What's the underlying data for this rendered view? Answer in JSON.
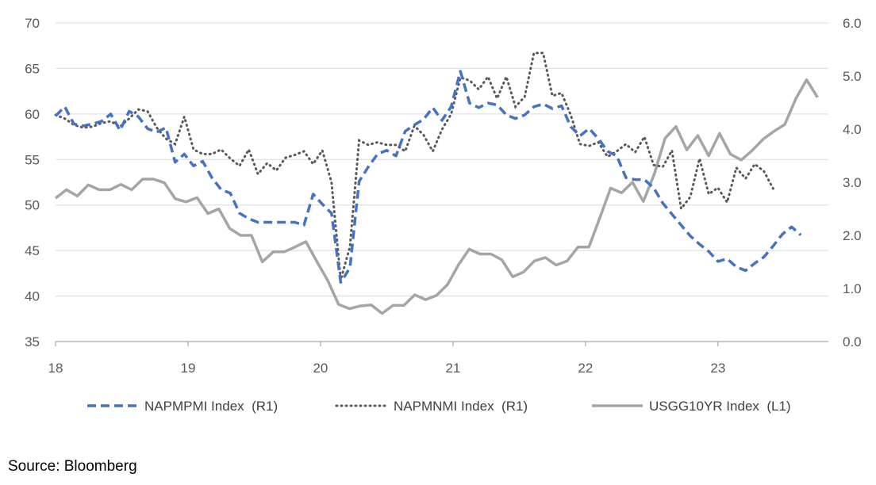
{
  "chart_data": {
    "type": "line",
    "title": "",
    "source": "Source: Bloomberg",
    "x_tick_labels": [
      "18",
      "19",
      "20",
      "21",
      "22",
      "23"
    ],
    "x_domain_months": [
      0,
      70
    ],
    "left_axis": {
      "ticks": [
        "70",
        "65",
        "60",
        "55",
        "50",
        "45",
        "40",
        "35"
      ],
      "range": [
        35,
        70
      ]
    },
    "right_axis": {
      "ticks": [
        "6.0",
        "5.0",
        "4.0",
        "3.0",
        "2.0",
        "1.0",
        "0.0"
      ],
      "range": [
        0,
        6
      ]
    },
    "colors": {
      "napmpmi": "#4472C4",
      "napmnmi": "#595959",
      "usgg10yr": "#A5A5A5",
      "grid": "#D9D9D9",
      "axis": "#A6A6A6"
    },
    "series": [
      {
        "key": "napmpmi",
        "name": "NAPMPMI Index  (R1)",
        "style": "dashed",
        "scale": "left",
        "values": [
          59.8,
          60.8,
          58.9,
          58.7,
          58.9,
          59.2,
          60.0,
          58.2,
          60.3,
          59.7,
          58.4,
          58.0,
          58.5,
          54.7,
          55.6,
          54.3,
          54.8,
          53.0,
          51.7,
          51.3,
          49.1,
          48.5,
          48.1,
          48.1,
          48.1,
          48.1,
          48.1,
          47.8,
          51.2,
          50.1,
          49.1,
          41.5,
          43.1,
          52.6,
          54.2,
          55.6,
          56.0,
          55.4,
          58.1,
          58.8,
          59.4,
          60.7,
          59.3,
          60.8,
          64.7,
          61.2,
          60.7,
          61.2,
          61.0,
          59.9,
          59.5,
          59.9,
          60.8,
          61.1,
          60.6,
          60.9,
          58.6,
          57.6,
          58.4,
          57.3,
          55.9,
          55.4,
          53.0,
          52.8,
          52.8,
          51.9,
          50.2,
          49.0,
          47.8,
          46.6,
          45.7,
          44.9,
          43.8,
          44.1,
          43.2,
          42.8,
          43.6,
          44.3,
          45.5,
          46.8,
          47.6,
          46.7
        ],
        "x_start": 0,
        "x_step": 0.8333
      },
      {
        "key": "napmnmi",
        "name": "NAPMNMI Index  (R1)",
        "style": "dotted",
        "scale": "left",
        "values": [
          59.9,
          59.5,
          58.8,
          58.5,
          58.6,
          59.0,
          59.2,
          58.6,
          59.5,
          60.5,
          60.3,
          58.5,
          57.3,
          56.7,
          59.7,
          56.1,
          55.6,
          55.6,
          56.1,
          55.1,
          54.3,
          56.1,
          53.4,
          54.6,
          53.8,
          55.2,
          55.5,
          55.9,
          54.5,
          56.0,
          52.5,
          41.8,
          45.4,
          57.1,
          56.6,
          56.9,
          56.6,
          56.6,
          55.9,
          58.7,
          57.7,
          55.9,
          58.3,
          60.0,
          64.0,
          63.7,
          62.7,
          64.1,
          61.7,
          64.1,
          60.8,
          61.9,
          66.7,
          66.7,
          62.0,
          62.3,
          59.9,
          56.7,
          56.5,
          56.9,
          55.3,
          55.9,
          56.7,
          55.8,
          57.5,
          54.4,
          54.2,
          56.0,
          49.6,
          50.9,
          55.1,
          51.2,
          51.9,
          50.3,
          54.1,
          52.9,
          54.5,
          53.7,
          51.8
        ],
        "x_start": 0,
        "x_step": 0.8333
      },
      {
        "key": "usgg10yr",
        "name": "USGG10YR Index  (L1)",
        "style": "solid",
        "scale": "right",
        "values": [
          2.7,
          2.86,
          2.74,
          2.95,
          2.86,
          2.86,
          2.96,
          2.86,
          3.06,
          3.06,
          2.99,
          2.69,
          2.63,
          2.71,
          2.41,
          2.5,
          2.13,
          2.0,
          2.0,
          1.5,
          1.69,
          1.69,
          1.78,
          1.88,
          1.51,
          1.15,
          0.7,
          0.62,
          0.67,
          0.69,
          0.53,
          0.68,
          0.68,
          0.88,
          0.79,
          0.87,
          1.07,
          1.44,
          1.74,
          1.65,
          1.65,
          1.54,
          1.22,
          1.31,
          1.52,
          1.58,
          1.44,
          1.52,
          1.78,
          1.78,
          2.33,
          2.89,
          2.8,
          3.0,
          2.64,
          3.15,
          3.83,
          4.05,
          3.61,
          3.88,
          3.5,
          3.92,
          3.53,
          3.42,
          3.6,
          3.81,
          3.96,
          4.09,
          4.57,
          4.93,
          4.6
        ],
        "x_start": 0,
        "x_step": 0.9859
      }
    ]
  }
}
